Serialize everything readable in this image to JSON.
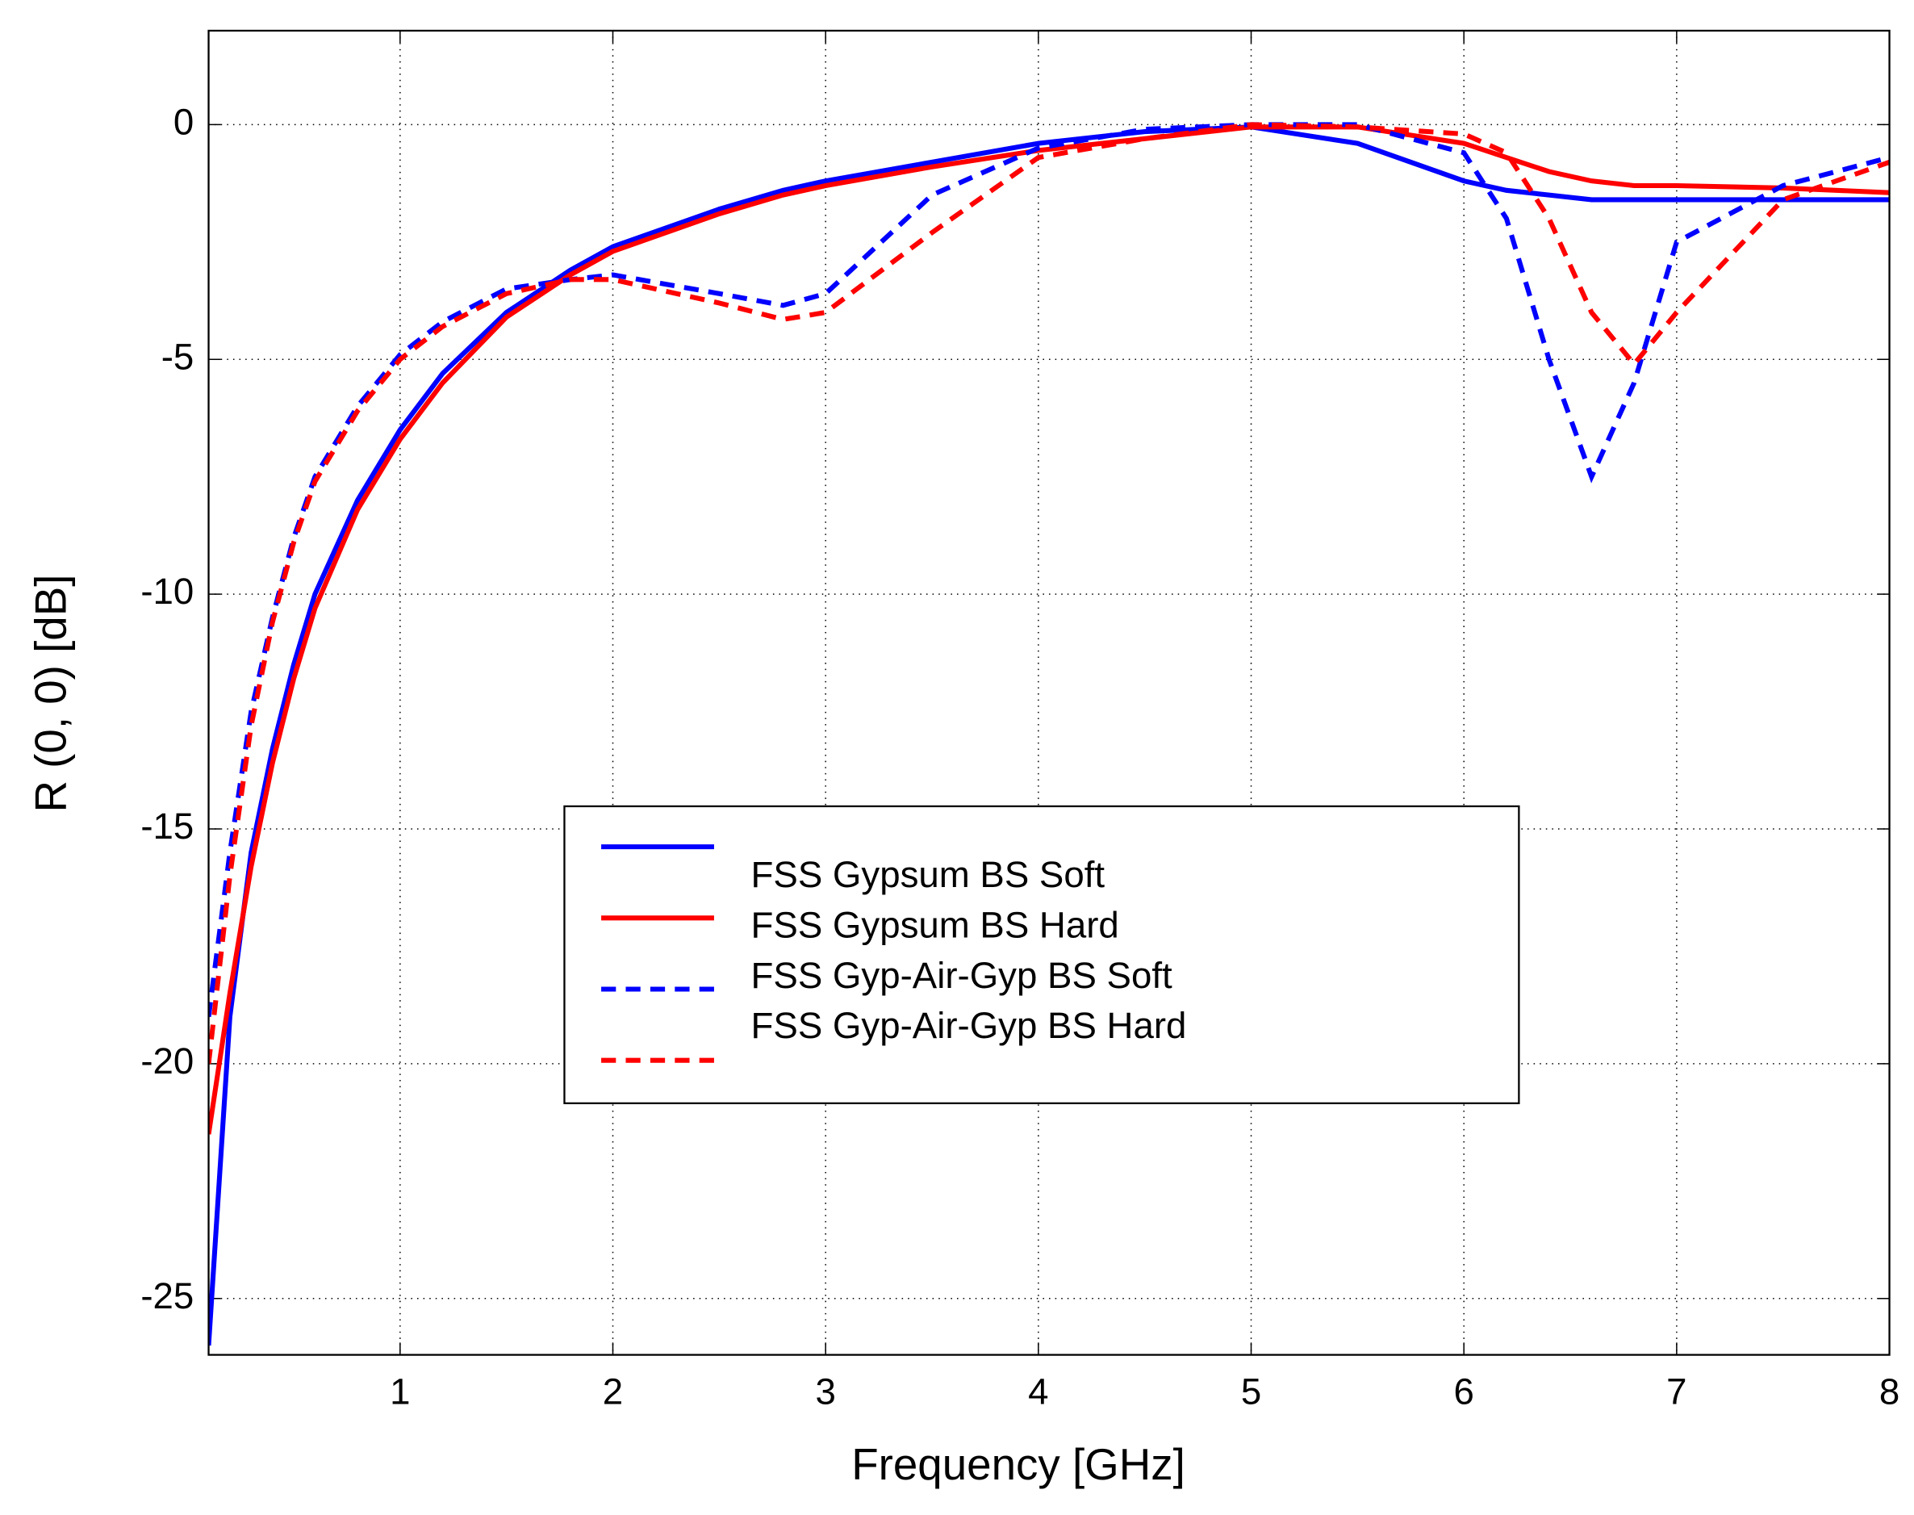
{
  "chart_data": {
    "type": "line",
    "x_label": "Frequency [GHz]",
    "y_label": "R (0, 0) [dB]",
    "x": [
      0.1,
      0.2,
      0.3,
      0.4,
      0.5,
      0.6,
      0.8,
      1,
      1.2,
      1.5,
      1.8,
      2,
      2.5,
      2.8,
      3,
      3.5,
      4,
      4.5,
      5,
      5.5,
      6,
      6.2,
      6.4,
      6.6,
      6.8,
      7,
      7.5,
      8
    ],
    "series": [
      {
        "name": "FSS Gypsum BS Soft",
        "color": "#0000ff",
        "dash": false,
        "values": [
          -26,
          -19,
          -15.5,
          -13.3,
          -11.5,
          -10,
          -8,
          -6.5,
          -5.3,
          -4,
          -3.1,
          -2.6,
          -1.8,
          -1.4,
          -1.2,
          -0.8,
          -0.4,
          -0.15,
          -0.05,
          -0.4,
          -1.2,
          -1.4,
          -1.5,
          -1.6,
          -1.6,
          -1.6,
          -1.6,
          -1.6
        ]
      },
      {
        "name": "FSS Gypsum BS Hard",
        "color": "#ff0000",
        "dash": false,
        "values": [
          -21.5,
          -18.5,
          -15.8,
          -13.6,
          -11.8,
          -10.3,
          -8.2,
          -6.7,
          -5.5,
          -4.1,
          -3.2,
          -2.7,
          -1.9,
          -1.5,
          -1.3,
          -0.9,
          -0.55,
          -0.3,
          -0.05,
          -0.05,
          -0.4,
          -0.7,
          -1,
          -1.2,
          -1.3,
          -1.3,
          -1.35,
          -1.45
        ]
      },
      {
        "name": "FSS Gyp-Air-Gyp BS Soft",
        "color": "#0000ff",
        "dash": true,
        "values": [
          -19,
          -15.5,
          -12.5,
          -10.5,
          -8.8,
          -7.5,
          -6,
          -4.9,
          -4.2,
          -3.5,
          -3.3,
          -3.2,
          -3.6,
          -3.85,
          -3.6,
          -1.5,
          -0.5,
          -0.1,
          0,
          0,
          -0.6,
          -2,
          -5,
          -7.5,
          -5.5,
          -2.5,
          -1.3,
          -0.7
        ]
      },
      {
        "name": "FSS Gyp-Air-Gyp BS Hard",
        "color": "#ff0000",
        "dash": true,
        "values": [
          -20,
          -16,
          -12.8,
          -10.6,
          -8.9,
          -7.6,
          -6.1,
          -5,
          -4.3,
          -3.6,
          -3.3,
          -3.3,
          -3.8,
          -4.15,
          -4,
          -2.3,
          -0.7,
          -0.3,
          0,
          -0.05,
          -0.2,
          -0.6,
          -2,
          -4,
          -5.1,
          -4,
          -1.6,
          -0.8
        ]
      }
    ],
    "xlim": [
      0.1,
      8
    ],
    "xticks": [
      1,
      2,
      3,
      4,
      5,
      6,
      7,
      8
    ],
    "ylim": [
      -26.2,
      2
    ],
    "yticks": [
      -25,
      -20,
      -15,
      -10,
      -5,
      0
    ],
    "grid": true
  }
}
